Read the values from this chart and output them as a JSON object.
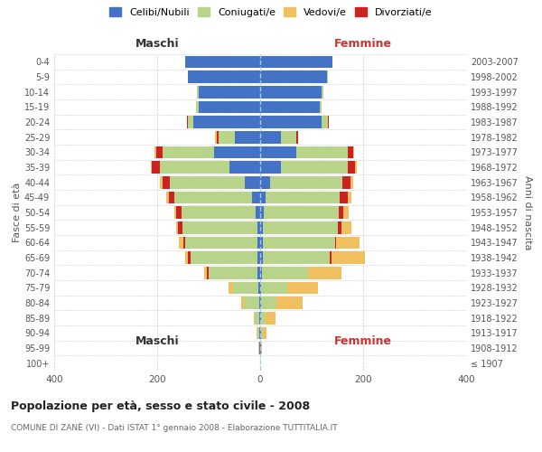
{
  "age_groups": [
    "100+",
    "95-99",
    "90-94",
    "85-89",
    "80-84",
    "75-79",
    "70-74",
    "65-69",
    "60-64",
    "55-59",
    "50-54",
    "45-49",
    "40-44",
    "35-39",
    "30-34",
    "25-29",
    "20-24",
    "15-19",
    "10-14",
    "5-9",
    "0-4"
  ],
  "birth_years": [
    "≤ 1907",
    "1908-1912",
    "1913-1917",
    "1918-1922",
    "1923-1927",
    "1928-1932",
    "1933-1937",
    "1938-1942",
    "1943-1947",
    "1948-1952",
    "1953-1957",
    "1958-1962",
    "1963-1967",
    "1968-1972",
    "1973-1977",
    "1978-1982",
    "1983-1987",
    "1988-1992",
    "1993-1997",
    "1998-2002",
    "2003-2007"
  ],
  "males": {
    "celibi": [
      0,
      1,
      2,
      2,
      2,
      3,
      5,
      5,
      5,
      6,
      8,
      16,
      30,
      60,
      90,
      50,
      130,
      120,
      120,
      140,
      145
    ],
    "coniugati": [
      0,
      1,
      3,
      8,
      30,
      50,
      95,
      130,
      140,
      145,
      145,
      150,
      145,
      135,
      100,
      30,
      10,
      4,
      2,
      1,
      1
    ],
    "vedovi": [
      0,
      1,
      2,
      3,
      5,
      8,
      5,
      5,
      8,
      5,
      4,
      4,
      4,
      3,
      3,
      2,
      0,
      0,
      0,
      0,
      0
    ],
    "divorziati": [
      0,
      0,
      0,
      0,
      0,
      0,
      3,
      5,
      5,
      8,
      10,
      12,
      15,
      15,
      12,
      5,
      2,
      0,
      0,
      0,
      0
    ]
  },
  "females": {
    "nubili": [
      0,
      1,
      2,
      2,
      2,
      2,
      3,
      5,
      5,
      5,
      7,
      10,
      20,
      40,
      70,
      40,
      120,
      115,
      120,
      130,
      140
    ],
    "coniugate": [
      0,
      1,
      3,
      8,
      30,
      50,
      90,
      130,
      140,
      145,
      145,
      145,
      140,
      130,
      100,
      30,
      12,
      5,
      2,
      1,
      1
    ],
    "vedove": [
      0,
      2,
      8,
      20,
      50,
      60,
      65,
      65,
      45,
      20,
      10,
      8,
      5,
      3,
      2,
      1,
      0,
      0,
      0,
      0,
      0
    ],
    "divorziate": [
      0,
      0,
      0,
      0,
      0,
      0,
      0,
      3,
      3,
      8,
      10,
      15,
      15,
      15,
      10,
      3,
      2,
      0,
      0,
      0,
      0
    ]
  },
  "colors": {
    "celibi": "#4472c4",
    "coniugati": "#b8d48a",
    "vedovi": "#f0c060",
    "divorziati": "#cc2222"
  },
  "xlim": 400,
  "title": "Popolazione per età, sesso e stato civile - 2008",
  "subtitle": "COMUNE DI ZANÈ (VI) - Dati ISTAT 1° gennaio 2008 - Elaborazione TUTTITALIA.IT",
  "ylabel_left": "Fasce di età",
  "ylabel_right": "Anni di nascita",
  "xlabel_maschi": "Maschi",
  "xlabel_femmine": "Femmine",
  "legend_labels": [
    "Celibi/Nubili",
    "Coniugati/e",
    "Vedovi/e",
    "Divorziati/e"
  ],
  "legend_colors": [
    "#4472c4",
    "#b8d48a",
    "#f0c060",
    "#cc2222"
  ]
}
